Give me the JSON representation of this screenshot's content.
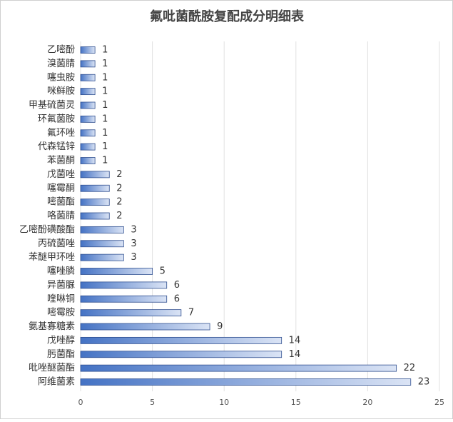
{
  "chart_data": {
    "type": "bar",
    "orientation": "horizontal",
    "title": "氟吡菌酰胺复配成分明细表",
    "categories": [
      "乙嘧酚",
      "溴菌腈",
      "噻虫胺",
      "咪鲜胺",
      "甲基硫菌灵",
      "环氟菌胺",
      "氟环唑",
      "代森锰锌",
      "苯菌酮",
      "戊菌唑",
      "噻霉酮",
      "嘧菌酯",
      "咯菌腈",
      "乙嘧酚磺酸酯",
      "丙硫菌唑",
      "苯醚甲环唑",
      "噻唑膦",
      "异菌脲",
      "喹啉铜",
      "嘧霉胺",
      "氨基寡糖素",
      "戊唑醇",
      "肟菌酯",
      "吡唑醚菌酯",
      "阿维菌素"
    ],
    "values": [
      1,
      1,
      1,
      1,
      1,
      1,
      1,
      1,
      1,
      2,
      2,
      2,
      2,
      3,
      3,
      3,
      5,
      6,
      6,
      7,
      9,
      14,
      14,
      22,
      23
    ],
    "color": "#4472c4",
    "xlim": [
      0,
      25
    ],
    "xticks": [
      0,
      5,
      10,
      15,
      20,
      25
    ],
    "grid": true
  }
}
